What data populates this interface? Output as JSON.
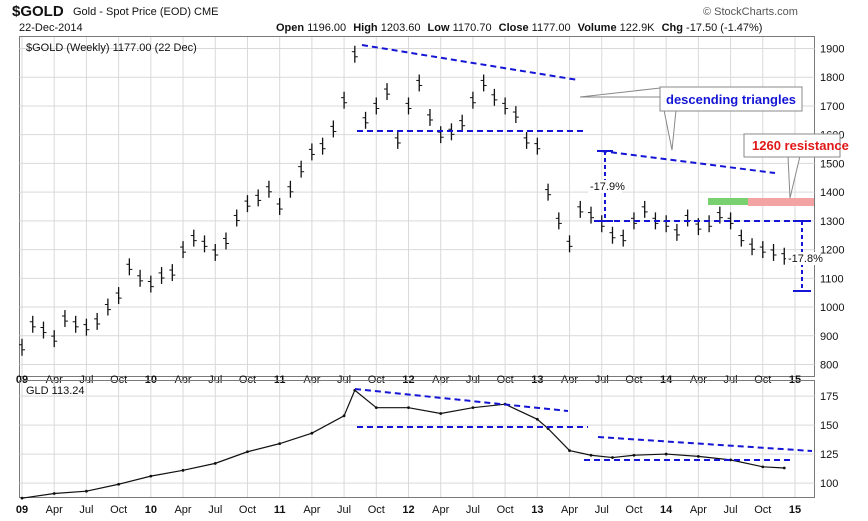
{
  "header": {
    "symbol": "$GOLD",
    "description": "Gold - Spot Price (EOD)  CME",
    "date": "22-Dec-2014",
    "credit": "© StockCharts.com",
    "open_label": "Open",
    "open": "1196.00",
    "high_label": "High",
    "high": "1203.60",
    "low_label": "Low",
    "low": "1170.70",
    "close_label": "Close",
    "close": "1177.00",
    "volume_label": "Volume",
    "volume": "122.9K",
    "chg_label": "Chg",
    "chg": "-17.50 (-1.47%)"
  },
  "chart_data": [
    {
      "type": "bar",
      "legend": "$GOLD (Weekly) 1177.00 (22 Dec)",
      "x_tick_labels": [
        "09",
        "Apr",
        "Jul",
        "Oct",
        "10",
        "Apr",
        "Jul",
        "Oct",
        "11",
        "Apr",
        "Jul",
        "Oct",
        "12",
        "Apr",
        "Jul",
        "Oct",
        "13",
        "Apr",
        "Jul",
        "Oct",
        "14",
        "Apr",
        "Jul",
        "Oct",
        "15"
      ],
      "y_ticks": [
        800,
        900,
        1000,
        1100,
        1200,
        1300,
        1400,
        1500,
        1600,
        1700,
        1800,
        1900
      ],
      "ylim": [
        760,
        1940
      ],
      "xlim": [
        0,
        72
      ],
      "x_unit": "months since Jan 2009",
      "series": [
        {
          "name": "$GOLD",
          "x": [
            0,
            1,
            2,
            3,
            4,
            5,
            6,
            7,
            8,
            9,
            10,
            11,
            12,
            13,
            14,
            15,
            16,
            17,
            18,
            19,
            20,
            21,
            22,
            23,
            24,
            25,
            26,
            27,
            28,
            29,
            30,
            31,
            32,
            33,
            34,
            35,
            36,
            37,
            38,
            39,
            40,
            41,
            42,
            43,
            44,
            45,
            46,
            47,
            48,
            49,
            50,
            51,
            52,
            53,
            54,
            55,
            56,
            57,
            58,
            59,
            60,
            61,
            62,
            63,
            64,
            65,
            66,
            67,
            68,
            69,
            70,
            71
          ],
          "values": [
            860,
            940,
            920,
            890,
            960,
            940,
            930,
            950,
            1000,
            1040,
            1140,
            1100,
            1080,
            1110,
            1120,
            1200,
            1240,
            1220,
            1190,
            1230,
            1310,
            1360,
            1380,
            1410,
            1350,
            1410,
            1480,
            1540,
            1560,
            1620,
            1720,
            1880,
            1650,
            1700,
            1750,
            1580,
            1700,
            1780,
            1660,
            1600,
            1610,
            1640,
            1720,
            1780,
            1730,
            1700,
            1670,
            1580,
            1560,
            1400,
            1300,
            1220,
            1340,
            1320,
            1290,
            1250,
            1240,
            1300,
            1340,
            1300,
            1290,
            1260,
            1310,
            1280,
            1290,
            1320,
            1300,
            1240,
            1210,
            1200,
            1190,
            1177
          ]
        }
      ],
      "annotations": [
        "descending triangles",
        "1260 resistance",
        "-17.9%",
        "-17.8%"
      ]
    },
    {
      "type": "line",
      "legend": "GLD 113.24",
      "x_tick_labels": [
        "09",
        "Apr",
        "Jul",
        "Oct",
        "10",
        "Apr",
        "Jul",
        "Oct",
        "11",
        "Apr",
        "Jul",
        "Oct",
        "12",
        "Apr",
        "Jul",
        "Oct",
        "13",
        "Apr",
        "Jul",
        "Oct",
        "14",
        "Apr",
        "Jul",
        "Oct",
        "15"
      ],
      "y_ticks": [
        100,
        125,
        150,
        175
      ],
      "ylim": [
        88,
        188
      ],
      "xlim": [
        0,
        72
      ],
      "x_unit": "months since Jan 2009",
      "series": [
        {
          "name": "GLD",
          "x": [
            0,
            3,
            6,
            9,
            12,
            15,
            18,
            21,
            24,
            27,
            30,
            31,
            33,
            36,
            39,
            42,
            45,
            48,
            49,
            51,
            53,
            55,
            57,
            60,
            63,
            66,
            69,
            71
          ],
          "values": [
            87,
            91,
            93,
            99,
            106,
            111,
            117,
            127,
            134,
            143,
            158,
            180,
            165,
            165,
            160,
            165,
            168,
            155,
            147,
            128,
            124,
            122,
            124,
            125,
            123,
            120,
            114,
            113
          ]
        }
      ]
    }
  ]
}
